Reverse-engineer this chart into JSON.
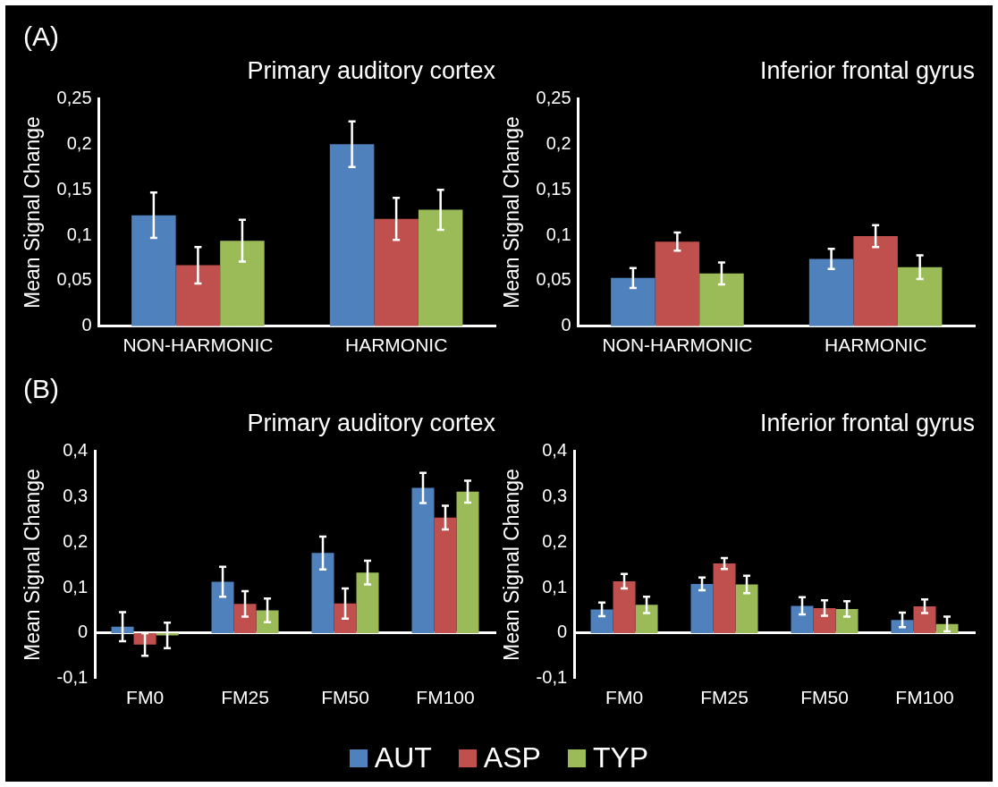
{
  "chart_data": [
    {
      "type": "bar",
      "title": "Primary auditory cortex",
      "ylabel": "Mean Signal Change",
      "annotations": [
        "(A)"
      ],
      "categories": [
        "NON-HARMONIC",
        "HARMONIC"
      ],
      "series": [
        {
          "name": "AUT",
          "color": "#4f81bd",
          "values": [
            0.122,
            0.2
          ],
          "errors": [
            0.025,
            0.025
          ]
        },
        {
          "name": "ASP",
          "color": "#c0504d",
          "values": [
            0.067,
            0.118
          ],
          "errors": [
            0.02,
            0.023
          ]
        },
        {
          "name": "TYP",
          "color": "#9bbb59",
          "values": [
            0.094,
            0.128
          ],
          "errors": [
            0.023,
            0.022
          ]
        }
      ],
      "ylim": [
        0,
        0.25
      ],
      "yticks": [
        {
          "value": 0,
          "label": "0"
        },
        {
          "value": 0.05,
          "label": "0,05"
        },
        {
          "value": 0.1,
          "label": "0,1"
        },
        {
          "value": 0.15,
          "label": "0,15"
        },
        {
          "value": 0.2,
          "label": "0,2"
        },
        {
          "value": 0.25,
          "label": "0,25"
        }
      ],
      "legend": "bottom"
    },
    {
      "type": "bar",
      "title": "Inferior frontal gyrus",
      "ylabel": "Mean Signal Change",
      "categories": [
        "NON-HARMONIC",
        "HARMONIC"
      ],
      "series": [
        {
          "color": "#4f81bd",
          "values": [
            0.053,
            0.074
          ],
          "errors": [
            0.011,
            0.011
          ]
        },
        {
          "color": "#c0504d",
          "values": [
            0.093,
            0.099
          ],
          "errors": [
            0.01,
            0.012
          ]
        },
        {
          "color": "#9bbb59",
          "values": [
            0.058,
            0.065
          ],
          "errors": [
            0.012,
            0.013
          ]
        }
      ],
      "ylim": [
        0,
        0.25
      ],
      "yticks": [
        {
          "value": 0,
          "label": "0"
        },
        {
          "value": 0.05,
          "label": "0,05"
        },
        {
          "value": 0.1,
          "label": "0,1"
        },
        {
          "value": 0.15,
          "label": "0,15"
        },
        {
          "value": 0.2,
          "label": "0,2"
        },
        {
          "value": 0.25,
          "label": "0,25"
        }
      ]
    },
    {
      "type": "bar",
      "title": "Primary auditory cortex",
      "ylabel": "Mean Signal Change",
      "annotations": [
        "(B)"
      ],
      "categories": [
        "FM0",
        "FM25",
        "FM50",
        "FM100"
      ],
      "series": [
        {
          "color": "#4f81bd",
          "values": [
            0.014,
            0.113,
            0.176,
            0.319
          ],
          "errors": [
            0.032,
            0.033,
            0.036,
            0.033
          ]
        },
        {
          "color": "#c0504d",
          "values": [
            -0.025,
            0.064,
            0.065,
            0.254
          ],
          "errors": [
            0.025,
            0.028,
            0.033,
            0.026
          ]
        },
        {
          "color": "#9bbb59",
          "values": [
            -0.005,
            0.05,
            0.133,
            0.311
          ],
          "errors": [
            0.028,
            0.026,
            0.026,
            0.024
          ]
        }
      ],
      "ylim": [
        -0.1,
        0.4
      ],
      "yticks": [
        {
          "value": -0.1,
          "label": "-0,1"
        },
        {
          "value": 0,
          "label": "0"
        },
        {
          "value": 0.1,
          "label": "0,1"
        },
        {
          "value": 0.2,
          "label": "0,2"
        },
        {
          "value": 0.3,
          "label": "0,3"
        },
        {
          "value": 0.4,
          "label": "0,4"
        }
      ]
    },
    {
      "type": "bar",
      "title": "Inferior frontal gyrus",
      "ylabel": "Mean Signal Change",
      "categories": [
        "FM0",
        "FM25",
        "FM50",
        "FM100"
      ],
      "series": [
        {
          "color": "#4f81bd",
          "values": [
            0.052,
            0.108,
            0.06,
            0.029
          ],
          "errors": [
            0.015,
            0.014,
            0.019,
            0.016
          ]
        },
        {
          "color": "#c0504d",
          "values": [
            0.114,
            0.153,
            0.055,
            0.059
          ],
          "errors": [
            0.016,
            0.012,
            0.017,
            0.015
          ]
        },
        {
          "color": "#9bbb59",
          "values": [
            0.062,
            0.107,
            0.053,
            0.02
          ],
          "errors": [
            0.018,
            0.019,
            0.017,
            0.016
          ]
        }
      ],
      "ylim": [
        -0.1,
        0.4
      ],
      "yticks": [
        {
          "value": -0.1,
          "label": "-0,1"
        },
        0,
        {
          "value": 0.1,
          "label": "0,1"
        },
        {
          "value": 0.2,
          "label": "0,2"
        },
        {
          "value": 0.3,
          "label": "0,3"
        },
        {
          "value": 0.4,
          "label": "0,4"
        }
      ]
    }
  ]
}
